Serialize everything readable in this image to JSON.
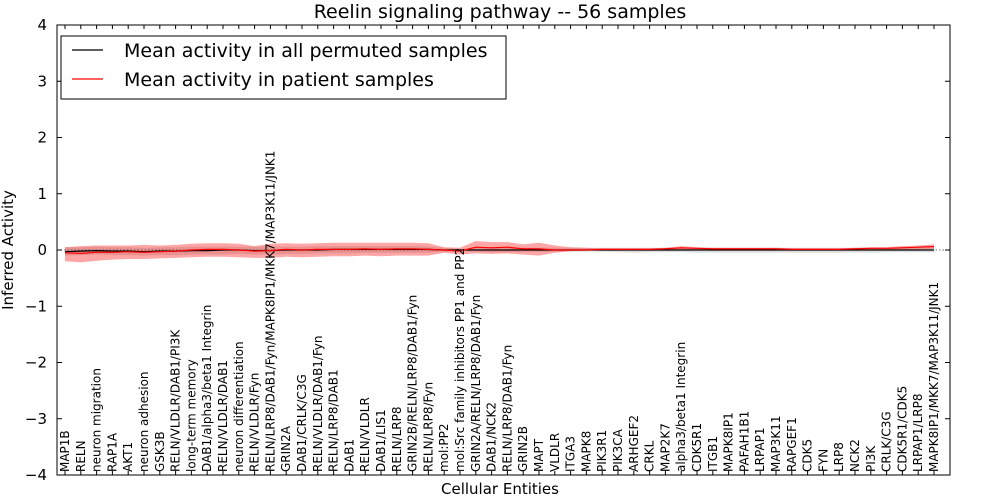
{
  "chart_data": {
    "type": "line",
    "title": "Reelin signaling pathway -- 56 samples",
    "xlabel": "Cellular Entities",
    "ylabel": "Inferred Activity",
    "ylim": [
      -4,
      4
    ],
    "yticks": [
      -4,
      -3,
      -2,
      -1,
      0,
      1,
      2,
      3,
      4
    ],
    "ytick_labels": [
      "−4",
      "−3",
      "−2",
      "−1",
      "0",
      "1",
      "2",
      "3",
      "4"
    ],
    "legend": {
      "placement": "top-left",
      "entries": [
        {
          "label": "Mean activity in all permuted samples",
          "color": "#000000"
        },
        {
          "label": "Mean activity in patient samples",
          "color": "#ff0000"
        }
      ]
    },
    "categories": [
      "MAP1B",
      "RELN",
      "neuron migration",
      "RAP1A",
      "AKT1",
      "neuron adhesion",
      "GSK3B",
      "RELN/VLDLR/DAB1/PI3K",
      "long-term memory",
      "DAB1/alpha3/beta1 Integrin",
      "RELN/VLDLR/DAB1",
      "neuron differentiation",
      "RELN/VLDLR/Fyn",
      "RELN/LRP8/DAB1/Fyn/MAPK8IP1/MKK7/MAP3K11/JNK1",
      "GRIN2A",
      "DAB1/CRLK/C3G",
      "RELN/VLDLR/DAB1/Fyn",
      "RELN/LRP8/DAB1",
      "DAB1",
      "RELN/VLDLR",
      "DAB1/LIS1",
      "RELN/LRP8",
      "GRIN2B/RELN/LRP8/DAB1/Fyn",
      "RELN/LRP8/Fyn",
      "mol:PP2",
      "mol:Src family inhibitors PP1 and PP2",
      "GRIN2A/RELN/LRP8/DAB1/Fyn",
      "DAB1/NCK2",
      "RELN/LRP8/DAB1/Fyn",
      "GRIN2B",
      "MAPT",
      "VLDLR",
      "ITGA3",
      "MAPK8",
      "PIK3R1",
      "PIK3CA",
      "ARHGEF2",
      "CRKL",
      "MAP2K7",
      "alpha3/beta1 Integrin",
      "CDK5R1",
      "ITGB1",
      "MAPK8IP1",
      "PAFAH1B1",
      "LRPAP1",
      "MAP3K11",
      "RAPGEF1",
      "CDK5",
      "FYN",
      "LRP8",
      "NCK2",
      "PI3K",
      "CRLK/C3G",
      "CDK5R1/CDK5",
      "LRPAP1/LRP8",
      "MAPK8IP1/MKK7/MAP3K11/JNK1"
    ],
    "series": [
      {
        "name": "Mean activity in all permuted samples",
        "color": "#000000",
        "values": [
          -0.03,
          -0.02,
          -0.01,
          -0.02,
          -0.02,
          -0.03,
          -0.02,
          -0.02,
          -0.01,
          -0.01,
          0.0,
          0.0,
          -0.01,
          -0.01,
          0.0,
          0.0,
          0.0,
          0.01,
          0.01,
          0.01,
          0.01,
          0.01,
          0.01,
          0.01,
          0.0,
          0.0,
          0.0,
          0.0,
          0.0,
          0.0,
          0.0,
          0.0,
          0.0,
          0.0,
          0.0,
          0.0,
          0.0,
          0.0,
          0.0,
          0.0,
          0.0,
          0.0,
          0.0,
          0.0,
          0.0,
          0.0,
          0.0,
          0.0,
          0.0,
          0.0,
          0.0,
          0.0,
          0.0,
          0.0,
          0.0,
          0.0
        ],
        "band_lower": [
          -0.1,
          -0.09,
          -0.08,
          -0.09,
          -0.09,
          -0.1,
          -0.09,
          -0.09,
          -0.08,
          -0.08,
          -0.08,
          -0.07,
          -0.08,
          -0.08,
          -0.07,
          -0.07,
          -0.06,
          -0.06,
          -0.06,
          -0.05,
          -0.05,
          -0.05,
          -0.05,
          -0.05,
          -0.03,
          -0.02,
          -0.03,
          -0.04,
          -0.04,
          -0.03,
          -0.03,
          -0.03,
          -0.03,
          -0.03,
          -0.03,
          -0.04,
          -0.05,
          -0.04,
          -0.04,
          -0.04,
          -0.05,
          -0.05,
          -0.05,
          -0.05,
          -0.05,
          -0.05,
          -0.05,
          -0.05,
          -0.05,
          -0.05,
          -0.05,
          -0.05,
          -0.04,
          -0.04,
          -0.04,
          -0.04
        ],
        "band_upper": [
          0.05,
          0.05,
          0.06,
          0.05,
          0.05,
          0.04,
          0.05,
          0.05,
          0.06,
          0.06,
          0.06,
          0.06,
          0.06,
          0.06,
          0.06,
          0.06,
          0.07,
          0.07,
          0.07,
          0.07,
          0.07,
          0.07,
          0.07,
          0.06,
          0.04,
          0.02,
          0.04,
          0.05,
          0.05,
          0.04,
          0.04,
          0.04,
          0.04,
          0.04,
          0.04,
          0.04,
          0.04,
          0.04,
          0.04,
          0.04,
          0.04,
          0.04,
          0.04,
          0.04,
          0.04,
          0.04,
          0.04,
          0.04,
          0.04,
          0.04,
          0.04,
          0.04,
          0.04,
          0.04,
          0.04,
          0.04
        ]
      },
      {
        "name": "Mean activity in patient samples",
        "color": "#ff0000",
        "values": [
          -0.05,
          -0.06,
          -0.04,
          -0.04,
          -0.03,
          -0.04,
          -0.03,
          -0.02,
          0.0,
          0.01,
          0.01,
          0.0,
          -0.02,
          -0.01,
          0.01,
          0.0,
          0.01,
          0.01,
          0.01,
          0.02,
          0.01,
          0.02,
          0.02,
          0.01,
          0.0,
          -0.02,
          0.05,
          0.04,
          0.05,
          0.02,
          0.02,
          0.0,
          0.0,
          0.0,
          0.01,
          0.01,
          0.01,
          0.01,
          0.02,
          0.04,
          0.03,
          0.02,
          0.02,
          0.02,
          0.02,
          0.02,
          0.01,
          0.01,
          0.01,
          0.01,
          0.02,
          0.03,
          0.03,
          0.04,
          0.05,
          0.06
        ],
        "band_lower": [
          -0.2,
          -0.22,
          -0.19,
          -0.17,
          -0.16,
          -0.16,
          -0.15,
          -0.14,
          -0.13,
          -0.12,
          -0.12,
          -0.13,
          -0.14,
          -0.14,
          -0.12,
          -0.13,
          -0.12,
          -0.11,
          -0.11,
          -0.1,
          -0.11,
          -0.1,
          -0.1,
          -0.1,
          -0.05,
          -0.08,
          -0.06,
          -0.07,
          -0.06,
          -0.08,
          -0.1,
          -0.05,
          -0.02,
          -0.01,
          0.0,
          0.0,
          0.0,
          0.0,
          0.0,
          0.0,
          0.0,
          0.0,
          0.0,
          0.0,
          0.0,
          0.0,
          0.0,
          0.0,
          0.0,
          0.0,
          0.0,
          0.0,
          0.0,
          0.0,
          0.01,
          0.02
        ],
        "band_upper": [
          0.05,
          0.07,
          0.08,
          0.08,
          0.08,
          0.09,
          0.08,
          0.09,
          0.11,
          0.12,
          0.12,
          0.11,
          0.07,
          0.11,
          0.12,
          0.11,
          0.12,
          0.13,
          0.13,
          0.13,
          0.13,
          0.13,
          0.13,
          0.12,
          0.05,
          0.04,
          0.16,
          0.14,
          0.14,
          0.1,
          0.13,
          0.08,
          0.05,
          0.04,
          0.03,
          0.03,
          0.03,
          0.03,
          0.04,
          0.07,
          0.05,
          0.04,
          0.04,
          0.04,
          0.04,
          0.04,
          0.03,
          0.03,
          0.03,
          0.03,
          0.04,
          0.05,
          0.05,
          0.07,
          0.08,
          0.1
        ]
      }
    ]
  }
}
